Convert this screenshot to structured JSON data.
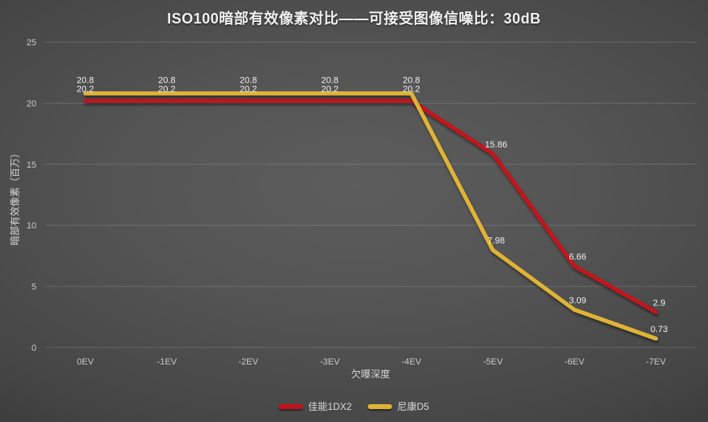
{
  "title": "ISO100暗部有效像素对比——可接受图像信噪比：30dB",
  "chart_data": {
    "type": "line",
    "title": "ISO100暗部有效像素对比——可接受图像信噪比：30dB",
    "categories": [
      "0EV",
      "-1EV",
      "-2EV",
      "-3EV",
      "-4EV",
      "-5EV",
      "-6EV",
      "-7EV"
    ],
    "series": [
      {
        "name": "佳能1DX2",
        "color": "#c1121a",
        "values": [
          20.2,
          20.2,
          20.2,
          20.2,
          20.2,
          15.86,
          6.66,
          2.9
        ]
      },
      {
        "name": "尼康D5",
        "color": "#dfb336",
        "values": [
          20.8,
          20.8,
          20.8,
          20.8,
          20.8,
          7.98,
          3.09,
          0.73
        ]
      }
    ],
    "xlabel": "欠曝深度",
    "ylabel": "暗部有效像素（百万）",
    "ylim": [
      0,
      25
    ],
    "ytick_step": 5,
    "yticks": [
      "0",
      "5",
      "10",
      "15",
      "20",
      "25"
    ],
    "grid": true,
    "legend_position": "bottom",
    "data_labels": true
  },
  "colors": {
    "grid": "rgba(255,255,255,0.15)",
    "tick_text": "#c9c9c9",
    "data_label_text": "#f0f0f0",
    "title_text": "#f1f1f1"
  }
}
